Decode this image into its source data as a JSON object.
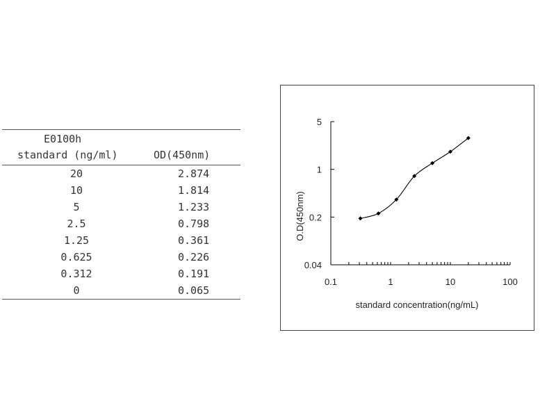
{
  "table": {
    "header_line1": "E0100h",
    "header_col1": "standard (ng/ml)",
    "header_col2": "OD(450nm)",
    "rows": [
      {
        "conc": "20",
        "od": "2.874"
      },
      {
        "conc": "10",
        "od": "1.814"
      },
      {
        "conc": "5",
        "od": "1.233"
      },
      {
        "conc": "2.5",
        "od": "0.798"
      },
      {
        "conc": "1.25",
        "od": "0.361"
      },
      {
        "conc": "0.625",
        "od": "0.226"
      },
      {
        "conc": "0.312",
        "od": "0.191"
      },
      {
        "conc": "0",
        "od": "0.065"
      }
    ]
  },
  "chart_data": {
    "type": "line",
    "xlabel": "standard concentration(ng/mL)",
    "ylabel": "O.D(450nm)",
    "x_scale": "log",
    "y_scale": "log",
    "xlim": [
      0.1,
      100
    ],
    "ylim": [
      0.04,
      5
    ],
    "x_ticks": [
      "0.1",
      "1",
      "10",
      "100"
    ],
    "y_ticks": [
      "0.04",
      "0.2",
      "1",
      "5"
    ],
    "grid": false,
    "series": [
      {
        "x": [
          0.312,
          0.625,
          1.25,
          2.5,
          5,
          10,
          20
        ],
        "y": [
          0.191,
          0.226,
          0.361,
          0.798,
          1.233,
          1.814,
          2.874
        ]
      }
    ],
    "line_color": "#000000",
    "marker": "diamond"
  }
}
